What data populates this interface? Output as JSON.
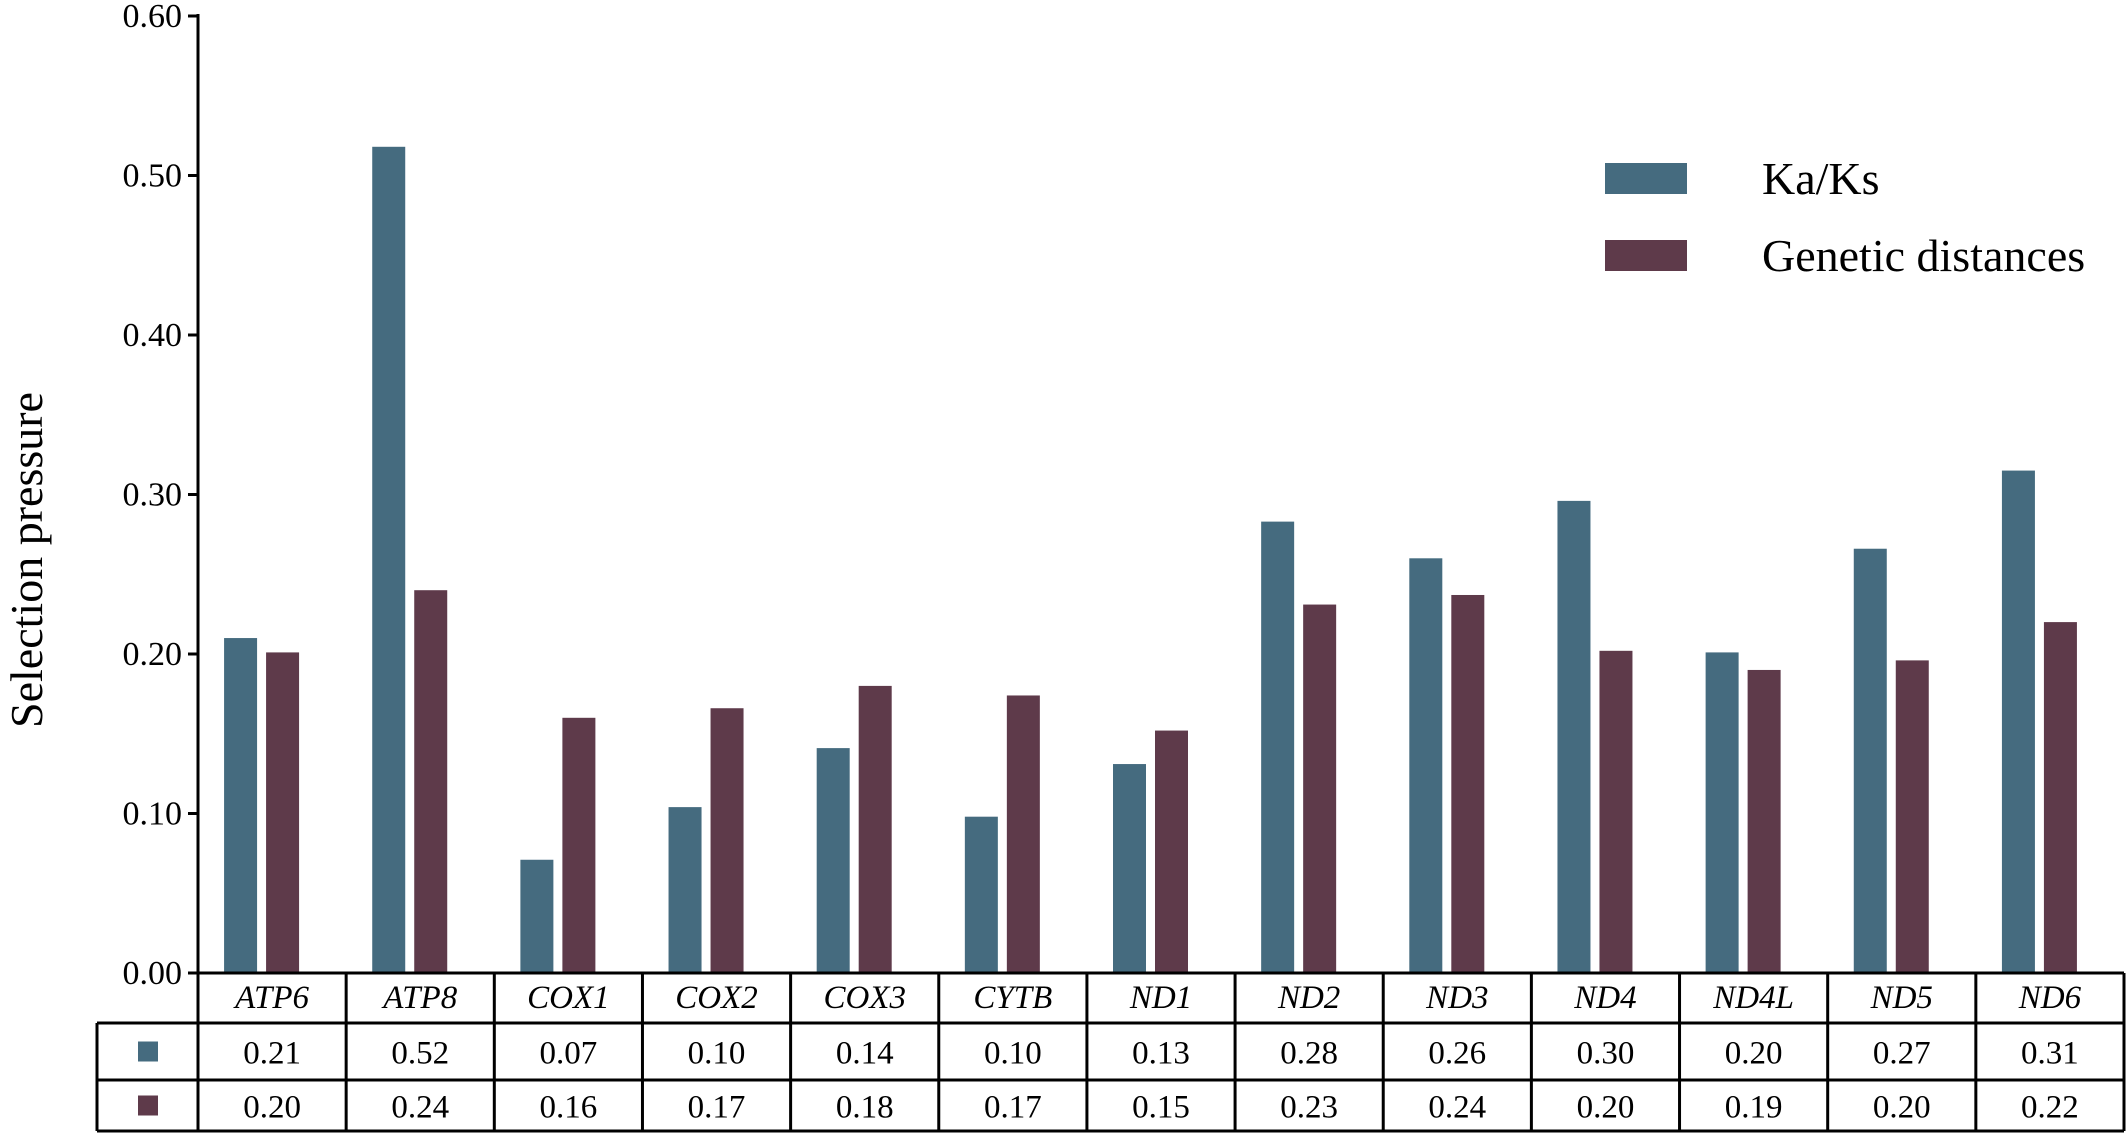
{
  "chart_data": {
    "type": "bar",
    "title": "",
    "xlabel": "",
    "ylabel": "Selection pressure",
    "ylim": [
      0,
      0.6
    ],
    "yticks": [
      "0.00",
      "0.10",
      "0.20",
      "0.30",
      "0.40",
      "0.50",
      "0.60"
    ],
    "grid": false,
    "legend_position": "top-right",
    "categories": [
      "ATP6",
      "ATP8",
      "COX1",
      "COX2",
      "COX3",
      "CYTB",
      "ND1",
      "ND2",
      "ND3",
      "ND4",
      "ND4L",
      "ND5",
      "ND6"
    ],
    "series": [
      {
        "name": "Ka/Ks",
        "color": "#456b7f",
        "values": [
          0.21,
          0.518,
          0.071,
          0.104,
          0.141,
          0.098,
          0.131,
          0.283,
          0.26,
          0.296,
          0.201,
          0.266,
          0.315
        ],
        "labels": [
          "0.21",
          "0.52",
          "0.07",
          "0.10",
          "0.14",
          "0.10",
          "0.13",
          "0.28",
          "0.26",
          "0.30",
          "0.20",
          "0.27",
          "0.31"
        ]
      },
      {
        "name": "Genetic distances",
        "color": "#5e3a4a",
        "values": [
          0.201,
          0.24,
          0.16,
          0.166,
          0.18,
          0.174,
          0.152,
          0.231,
          0.237,
          0.202,
          0.19,
          0.196,
          0.22
        ],
        "labels": [
          "0.20",
          "0.24",
          "0.16",
          "0.17",
          "0.18",
          "0.17",
          "0.15",
          "0.23",
          "0.24",
          "0.20",
          "0.19",
          "0.20",
          "0.22"
        ]
      }
    ]
  }
}
